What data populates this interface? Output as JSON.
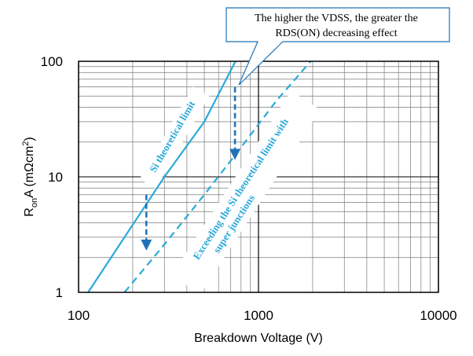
{
  "chart_data": {
    "type": "line",
    "title": "",
    "xlabel": "Breakdown Voltage (V)",
    "ylabel": {
      "base": "R",
      "sub": "on",
      "rest": "A (mΩcm",
      "sup": "2",
      "end": ")"
    },
    "xscale": "log",
    "yscale": "log",
    "xlim": [
      100,
      10000
    ],
    "ylim": [
      1,
      100
    ],
    "x_ticks": [
      "100",
      "1000",
      "10000"
    ],
    "y_ticks": [
      "1",
      "10",
      "100"
    ],
    "grid": true,
    "series": [
      {
        "style": "solid",
        "color": "#2aaad9",
        "x": [
          113,
          180,
          300,
          500,
          745
        ],
        "y": [
          1,
          3,
          10,
          30,
          100
        ]
      },
      {
        "style": "dashed",
        "color": "#2aaad9",
        "x": [
          180,
          300,
          500,
          800,
          1250,
          1950
        ],
        "y": [
          1,
          2.6,
          7,
          18,
          45,
          100
        ]
      }
    ],
    "annotations": {
      "si_limit": "Si theoretical limit",
      "exceeding_line1": "Exceeding the Si theoretical limit with",
      "exceeding_line2": "super junctions",
      "callout_line1": "The higher the VDSS, the greater the",
      "callout_line2": "RDS(ON) decreasing effect"
    },
    "arrows": [
      {
        "x": 740,
        "y_from": 60,
        "y_to": 14,
        "color": "#1f72b8"
      },
      {
        "x": 238,
        "y_from": 7,
        "y_to": 2.3,
        "color": "#1f72b8"
      }
    ]
  }
}
